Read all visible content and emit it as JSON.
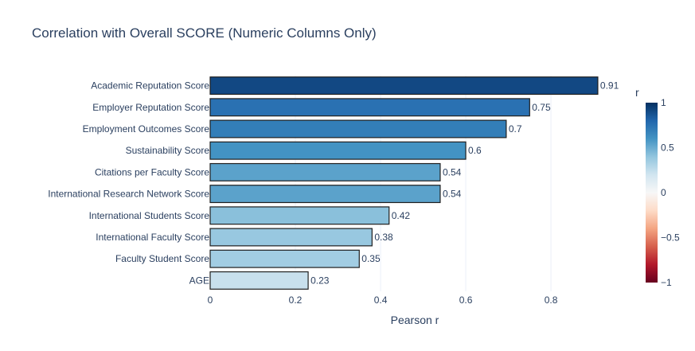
{
  "chart_data": {
    "type": "bar",
    "orientation": "horizontal",
    "title": "Correlation with Overall SCORE (Numeric Columns Only)",
    "xlabel": "Pearson r",
    "ylabel": "",
    "xlim": [
      0,
      0.955
    ],
    "x_ticks": [
      "0",
      "0.2",
      "0.4",
      "0.6",
      "0.8"
    ],
    "x_tick_values": [
      0,
      0.2,
      0.4,
      0.6,
      0.8
    ],
    "grid": true,
    "categories": [
      "Academic Reputation Score",
      "Employer Reputation Score",
      "Employment Outcomes Score",
      "Sustainability Score",
      "Citations per Faculty Score",
      "International Research Network Score",
      "International Students Score",
      "International Faculty Score",
      "Faculty Student Score",
      "AGE"
    ],
    "values": [
      0.91,
      0.75,
      0.695,
      0.6,
      0.54,
      0.54,
      0.42,
      0.38,
      0.35,
      0.23
    ],
    "value_labels": [
      "0.91",
      "0.75",
      "0.7",
      "0.6",
      "0.54",
      "0.54",
      "0.42",
      "0.38",
      "0.35",
      "0.23"
    ],
    "colorscale": "RdBu",
    "colorbar": {
      "title": "r",
      "range": [
        -1,
        1
      ],
      "ticks": [
        "1",
        "0.5",
        "0",
        "−0.5",
        "−1"
      ],
      "tick_values": [
        1,
        0.5,
        0,
        -0.5,
        -1
      ]
    },
    "bar_outline_color": "#1f1f1f"
  }
}
